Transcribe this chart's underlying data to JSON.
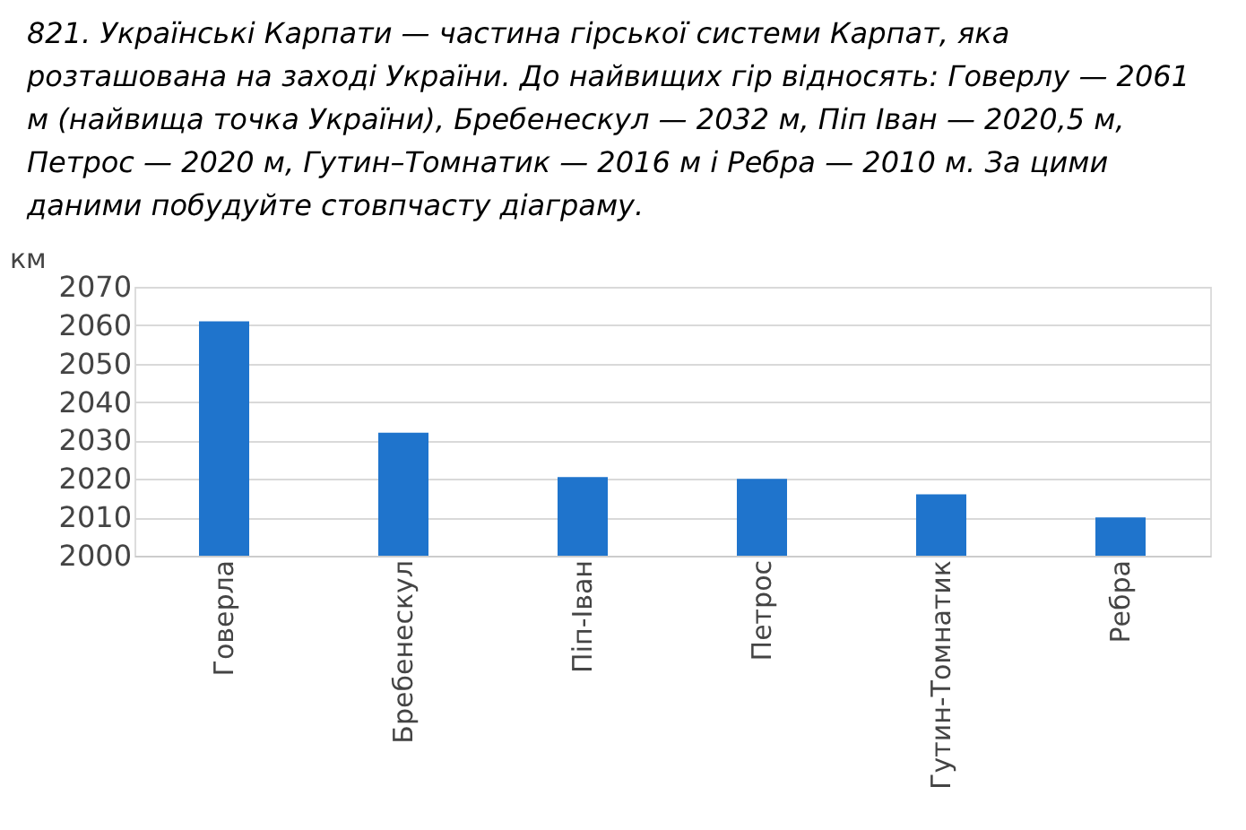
{
  "chart_data": {
    "type": "bar",
    "title": "821. Українські Карпати — частина гірської системи Карпат, яка розташована на заході України. До найвищих гір відносять: Говерлу — 2061 м (найвища точка України), Бребенескул — 2032 м, Піп Іван — 2020,5 м, Петрос — 2020 м, Гутин–Томнатик — 2016 м і Ребра — 2010 м. За цими даними побудуйте стовпчасту діаграму.",
    "ylabel": "км",
    "categories": [
      "Говерла",
      "Бребенескул",
      "Піп-Іван",
      "Петрос",
      "Гутин-Томнатик",
      "Ребра"
    ],
    "values": [
      2061,
      2032,
      2020.5,
      2020,
      2016,
      2010
    ],
    "color": "#1f74cc",
    "ylim": [
      2000,
      2070
    ],
    "yticks": [
      2000,
      2010,
      2020,
      2030,
      2040,
      2050,
      2060,
      2070
    ],
    "grid": "y"
  }
}
